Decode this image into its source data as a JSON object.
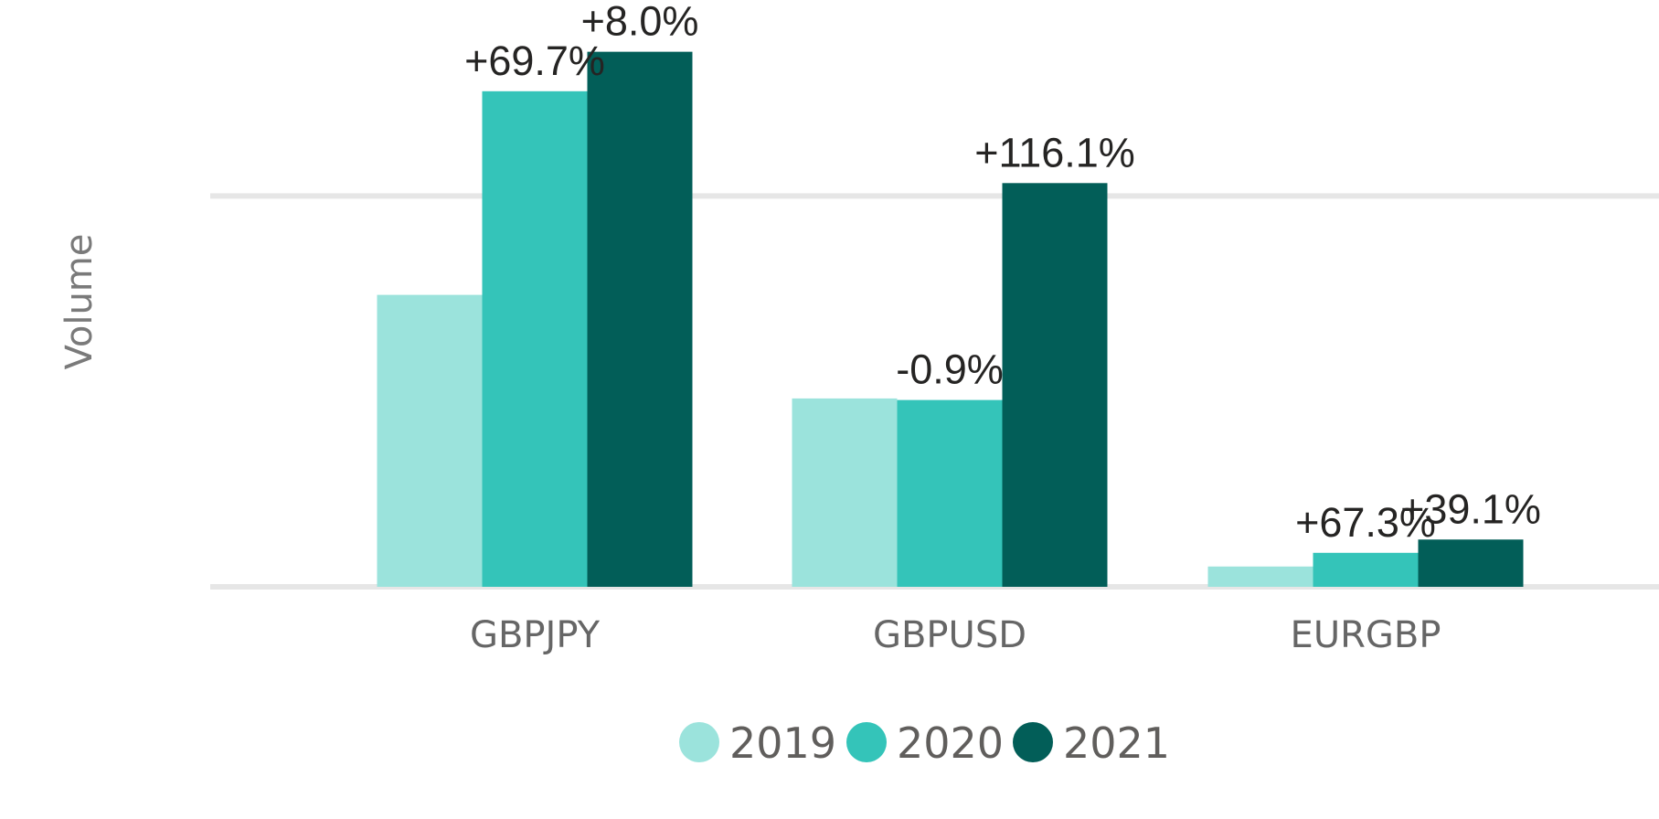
{
  "chart_data": {
    "type": "bar",
    "title": "",
    "xlabel": "",
    "ylabel": "Volume",
    "categories": [
      "GBPJPY",
      "GBPUSD",
      "EURGBP"
    ],
    "ylim": [
      0,
      145
    ],
    "gridlines": [
      0,
      100
    ],
    "series": [
      {
        "name": "2019",
        "color": "#9be3dc",
        "values": [
          74.7,
          48.2,
          5.2
        ],
        "labels": [
          "",
          "",
          ""
        ]
      },
      {
        "name": "2020",
        "color": "#34c4b9",
        "values": [
          126.8,
          47.8,
          8.7
        ],
        "labels": [
          "+69.7%",
          "-0.9%",
          "+67.3%"
        ]
      },
      {
        "name": "2021",
        "color": "#025e58",
        "values": [
          136.9,
          103.3,
          12.1
        ],
        "labels": [
          "+8.0%",
          "+116.1%",
          "+39.1%"
        ]
      }
    ],
    "legend_position": "bottom-center"
  }
}
